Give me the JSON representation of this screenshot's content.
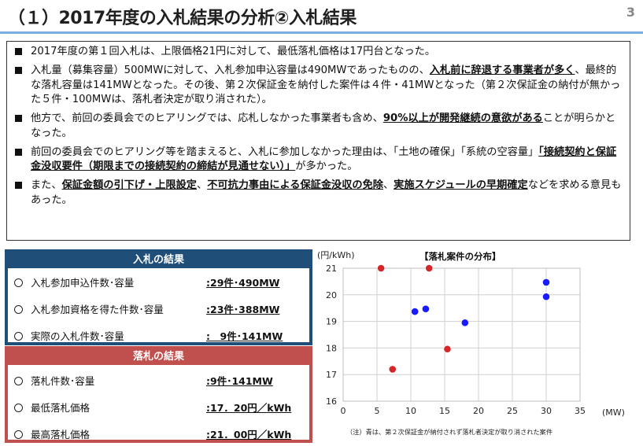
{
  "header": {
    "title": "（１）2017年度の入札結果の分析②入札結果",
    "page_number": "3"
  },
  "bullets": [
    {
      "parts": [
        {
          "t": "2017年度の第１回入札は、上限価格21円に対して、最低落札価格は17円台となった。"
        }
      ]
    },
    {
      "parts": [
        {
          "t": "入札量（募集容量）500MWに対して、入札参加申込容量は490MWであったものの、"
        },
        {
          "t": "入札前に辞退する事業者が多く",
          "u": true
        },
        {
          "t": "、最終的な落札容量は141MWとなった。その後、第２次保証金を納付した案件は４件・41MWとなった（第２次保証金の納付が無かった５件・100MWは、落札者決定が取り消された）。"
        }
      ]
    },
    {
      "parts": [
        {
          "t": "他方で、前回の委員会でのヒアリングでは、応札しなかった事業者も含め、"
        },
        {
          "t": "90%以上が開発継続の意欲がある",
          "u": true
        },
        {
          "t": "ことが明らかとなった。"
        }
      ]
    },
    {
      "parts": [
        {
          "t": "前回の委員会でのヒアリング等を踏まえると、入札に参加しなかった理由は、「土地の確保」「系統の空容量」"
        },
        {
          "t": "「接続契約と保証金没収要件（期限までの接続契約の締結が見通せない）」",
          "u": true
        },
        {
          "t": "が多かった。"
        }
      ]
    },
    {
      "parts": [
        {
          "t": "また、"
        },
        {
          "t": "保証金額の引下げ・上限設定",
          "u": true
        },
        {
          "t": "、"
        },
        {
          "t": "不可抗力事由による保証金没収の免除",
          "u": true
        },
        {
          "t": "、"
        },
        {
          "t": "実施スケジュールの早期確定",
          "u": true
        },
        {
          "t": "などを求める意見もあった。"
        }
      ]
    }
  ],
  "nyusatsu": {
    "heading": "入札の結果",
    "rows": [
      {
        "label": "入札参加申込件数･容量",
        "value": ":29件･490MW"
      },
      {
        "label": "入札参加資格を得た件数･容量",
        "value": ":23件･388MW"
      },
      {
        "label": "実際の入札件数･容量",
        "value": ":　9件･141MW"
      }
    ]
  },
  "rakusatsu": {
    "heading": "落札の結果",
    "rows": [
      {
        "label": "落札件数･容量",
        "value": ":9件･141MW"
      },
      {
        "label": "最低落札価格",
        "value": ":17．20円／kWh"
      },
      {
        "label": "最高落札価格",
        "value": ":21．00円／kWh"
      }
    ]
  },
  "chart_data": {
    "type": "scatter",
    "title": "【落札案件の分布】",
    "ylabel": "(円/kWh)",
    "xlabel": "(MW)",
    "xlim": [
      0,
      35
    ],
    "ylim": [
      16,
      21
    ],
    "x_ticks": [
      0,
      5,
      10,
      15,
      20,
      25,
      30,
      35
    ],
    "y_ticks": [
      16,
      17,
      18,
      19,
      20,
      21
    ],
    "grid": true,
    "note": "（注）青は、第２次保証金が納付されず落札者決定が取り消された案件",
    "series": [
      {
        "color": "#d62728",
        "points": [
          [
            5.6,
            21.0
          ],
          [
            12.7,
            21.0
          ],
          [
            7.3,
            17.2
          ],
          [
            15.4,
            17.96
          ]
        ]
      },
      {
        "color": "#1a1aff",
        "points": [
          [
            10.6,
            19.37
          ],
          [
            12.2,
            19.47
          ],
          [
            18.0,
            18.95
          ],
          [
            30.0,
            20.47
          ],
          [
            30.0,
            19.93
          ]
        ]
      }
    ]
  }
}
